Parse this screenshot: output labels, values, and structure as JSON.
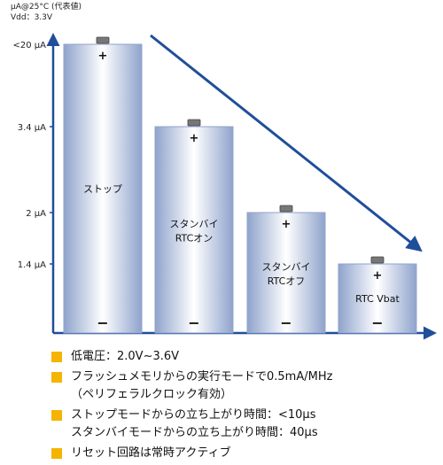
{
  "header": {
    "line1": "μA@25°C (代表値)",
    "line2": "Vdd：3.3V"
  },
  "chart_data": {
    "type": "bar",
    "categories": [
      "ストップ",
      "スタンバイ RTCオン",
      "スタンバイ RTCオフ",
      "RTC Vbat"
    ],
    "category_lines": [
      [
        "ストップ"
      ],
      [
        "スタンバイ",
        "RTCオン"
      ],
      [
        "スタンバイ",
        "RTCオフ"
      ],
      [
        "RTC Vbat"
      ]
    ],
    "tick_labels": [
      "<20 μA",
      "3.4 μA",
      "2 μA",
      "1.4 μA"
    ],
    "bar_levels": [
      0,
      1,
      2,
      3
    ],
    "legend": "none",
    "grid": false,
    "plus_symbol": "+",
    "minus_symbol": "−",
    "trend_arrow": true,
    "colors": {
      "axis": "#1f4e9a",
      "bar_edge": "#8fa3cc",
      "bar_center": "#ffffff",
      "arrow": "#1f4e9a"
    }
  },
  "bullets": [
    {
      "lines": [
        "低電圧：2.0V~3.6V"
      ]
    },
    {
      "lines": [
        "フラッシュメモリからの実行モードで0.5mA/MHz",
        "（ペリフェラルクロック有効）"
      ]
    },
    {
      "lines": [
        "ストップモードからの立ち上がり時間：<10μs",
        "スタンバイモードからの立ち上がり時間：40μs"
      ]
    },
    {
      "lines": [
        "リセット回路は常時アクティブ"
      ]
    }
  ],
  "bullet_color": "#f4b400"
}
